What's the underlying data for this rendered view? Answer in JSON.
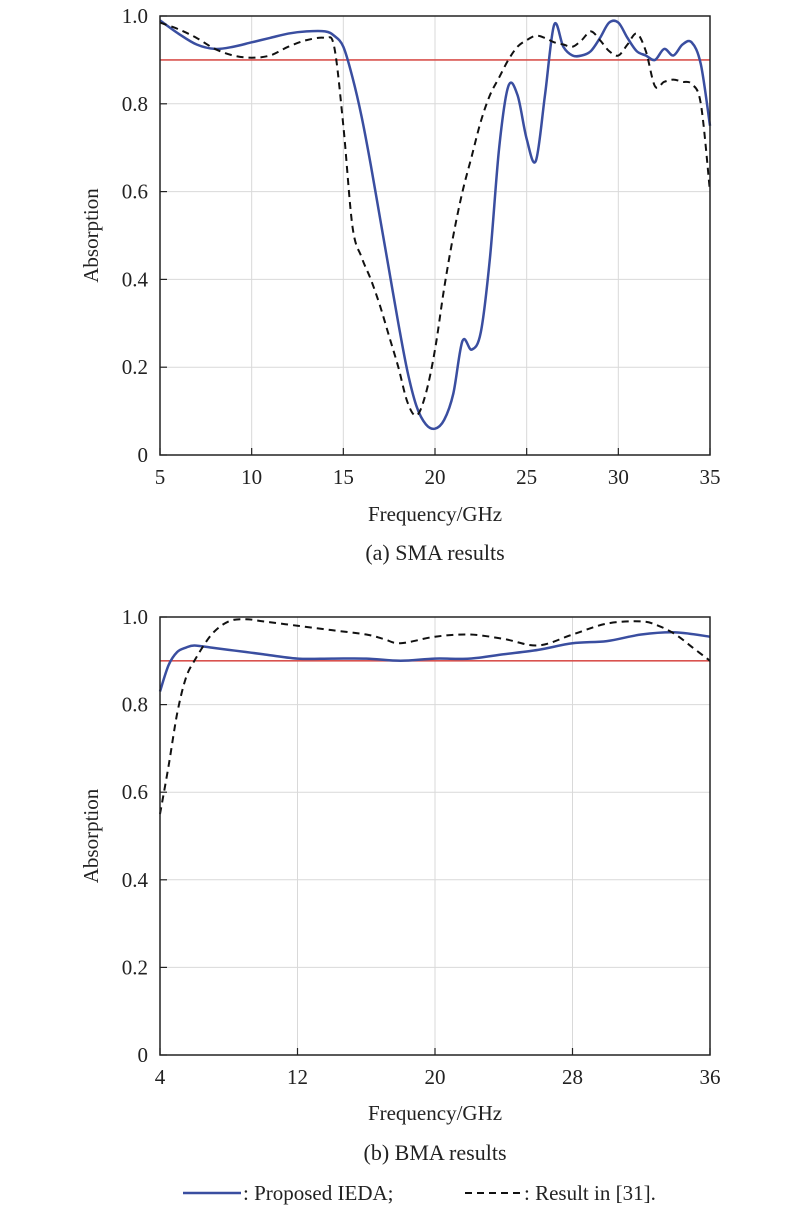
{
  "chart_data": [
    {
      "type": "line",
      "caption": "(a) SMA results",
      "xlabel": "Frequency/GHz",
      "ylabel": "Absorption",
      "xlim": [
        5,
        35
      ],
      "ylim": [
        0,
        1.0
      ],
      "xticks": [
        "5",
        "10",
        "15",
        "20",
        "25",
        "30",
        "35"
      ],
      "yticks": [
        "0",
        "0.2",
        "0.4",
        "0.6",
        "0.8",
        "1.0"
      ],
      "grid": true,
      "threshold": 0.9,
      "series": [
        {
          "name": "Proposed IEDA",
          "style": "solid",
          "color": "#3a4ea0",
          "x": [
            5,
            6,
            7,
            8,
            9,
            10,
            11,
            12,
            13,
            14,
            14.5,
            15,
            15.5,
            16,
            16.5,
            17,
            17.5,
            18,
            18.5,
            19,
            19.5,
            20,
            20.5,
            21,
            21.5,
            22,
            22.5,
            23,
            23.5,
            24,
            24.5,
            25,
            25.5,
            26,
            26.5,
            27,
            27.5,
            28,
            28.5,
            29,
            29.5,
            30,
            30.5,
            31,
            31.5,
            32,
            32.5,
            33,
            33.5,
            34,
            34.5,
            35
          ],
          "y": [
            0.99,
            0.96,
            0.935,
            0.925,
            0.93,
            0.94,
            0.95,
            0.96,
            0.965,
            0.965,
            0.955,
            0.93,
            0.86,
            0.77,
            0.66,
            0.54,
            0.42,
            0.3,
            0.19,
            0.11,
            0.07,
            0.06,
            0.08,
            0.14,
            0.26,
            0.24,
            0.28,
            0.45,
            0.7,
            0.84,
            0.82,
            0.72,
            0.67,
            0.82,
            0.98,
            0.93,
            0.91,
            0.91,
            0.92,
            0.95,
            0.985,
            0.985,
            0.95,
            0.92,
            0.91,
            0.9,
            0.925,
            0.91,
            0.935,
            0.94,
            0.89,
            0.75
          ]
        },
        {
          "name": "Result in [31]",
          "style": "dashed",
          "color": "#111111",
          "x": [
            5,
            6,
            7,
            8,
            9,
            10,
            11,
            12,
            13,
            14,
            14.5,
            15,
            15.5,
            16,
            16.5,
            17,
            17.5,
            18,
            18.5,
            19,
            19.5,
            20,
            20.5,
            21,
            21.5,
            22,
            22.5,
            23,
            23.5,
            24,
            24.5,
            25,
            25.5,
            26,
            26.5,
            27,
            27.5,
            28,
            28.5,
            29,
            29.5,
            30,
            30.5,
            31,
            31.5,
            32,
            32.5,
            33,
            33.5,
            34,
            34.5,
            35
          ],
          "y": [
            0.985,
            0.97,
            0.95,
            0.925,
            0.91,
            0.905,
            0.91,
            0.93,
            0.945,
            0.95,
            0.93,
            0.75,
            0.52,
            0.45,
            0.4,
            0.34,
            0.27,
            0.2,
            0.12,
            0.09,
            0.14,
            0.24,
            0.38,
            0.5,
            0.6,
            0.68,
            0.76,
            0.82,
            0.86,
            0.9,
            0.93,
            0.945,
            0.955,
            0.95,
            0.94,
            0.935,
            0.93,
            0.945,
            0.965,
            0.945,
            0.92,
            0.91,
            0.935,
            0.96,
            0.92,
            0.84,
            0.85,
            0.855,
            0.85,
            0.845,
            0.8,
            0.6
          ]
        }
      ]
    },
    {
      "type": "line",
      "caption": "(b) BMA results",
      "xlabel": "Frequency/GHz",
      "ylabel": "Absorption",
      "xlim": [
        4,
        36
      ],
      "ylim": [
        0,
        1.0
      ],
      "xticks": [
        "4",
        "12",
        "20",
        "28",
        "36"
      ],
      "yticks": [
        "0",
        "0.2",
        "0.4",
        "0.6",
        "0.8",
        "1.0"
      ],
      "grid": true,
      "threshold": 0.9,
      "series": [
        {
          "name": "Proposed IEDA",
          "style": "solid",
          "color": "#3a4ea0",
          "x": [
            4,
            4.5,
            5,
            5.5,
            6,
            7,
            8,
            9,
            10,
            12,
            14,
            16,
            18,
            20,
            22,
            24,
            26,
            28,
            30,
            32,
            34,
            36
          ],
          "y": [
            0.83,
            0.89,
            0.92,
            0.93,
            0.935,
            0.93,
            0.925,
            0.92,
            0.915,
            0.905,
            0.905,
            0.905,
            0.9,
            0.905,
            0.905,
            0.915,
            0.925,
            0.94,
            0.945,
            0.96,
            0.965,
            0.955
          ]
        },
        {
          "name": "Result in [31]",
          "style": "dashed",
          "color": "#111111",
          "x": [
            4,
            4.5,
            5,
            5.5,
            6,
            7,
            8,
            9,
            10,
            12,
            14,
            16,
            17,
            18,
            20,
            22,
            24,
            26,
            28,
            30,
            32,
            33,
            34,
            35,
            36
          ],
          "y": [
            0.55,
            0.66,
            0.78,
            0.86,
            0.9,
            0.96,
            0.99,
            0.995,
            0.99,
            0.98,
            0.97,
            0.96,
            0.95,
            0.94,
            0.955,
            0.96,
            0.95,
            0.935,
            0.96,
            0.985,
            0.99,
            0.98,
            0.96,
            0.93,
            0.9
          ]
        }
      ]
    }
  ],
  "legend": {
    "solid_label": ": Proposed IEDA;",
    "dashed_label": ": Result in [31]."
  }
}
